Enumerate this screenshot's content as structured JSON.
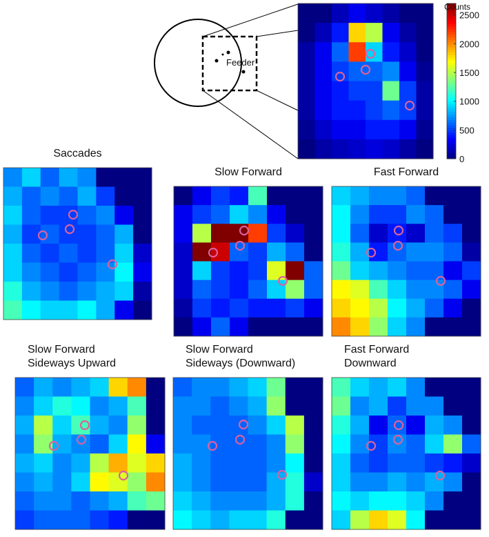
{
  "chart_data": [
    {
      "type": "heatmap",
      "colorbar_label": "Counts",
      "clim": [
        0,
        2700
      ],
      "cticks": [
        0,
        500,
        1000,
        1500,
        2000,
        2500
      ],
      "values": [
        [
          0,
          0,
          150,
          300,
          200,
          100,
          0,
          0
        ],
        [
          0,
          150,
          400,
          1800,
          1500,
          300,
          100,
          0
        ],
        [
          100,
          300,
          600,
          2200,
          900,
          400,
          200,
          0
        ],
        [
          100,
          300,
          500,
          600,
          600,
          700,
          300,
          50
        ],
        [
          100,
          300,
          400,
          500,
          500,
          1300,
          500,
          100
        ],
        [
          100,
          300,
          400,
          400,
          500,
          600,
          500,
          100
        ],
        [
          50,
          200,
          300,
          300,
          400,
          400,
          300,
          50
        ],
        [
          0,
          100,
          150,
          200,
          250,
          200,
          100,
          0
        ]
      ]
    },
    {
      "type": "heatmap",
      "title": [
        "Saccades"
      ],
      "clim": [
        0,
        2700
      ],
      "values": [
        [
          700,
          900,
          600,
          800,
          700,
          0,
          0,
          0
        ],
        [
          800,
          600,
          700,
          600,
          800,
          500,
          0,
          0
        ],
        [
          900,
          600,
          500,
          500,
          600,
          700,
          300,
          0
        ],
        [
          800,
          500,
          600,
          500,
          500,
          600,
          800,
          0
        ],
        [
          900,
          600,
          500,
          600,
          500,
          600,
          900,
          200
        ],
        [
          900,
          700,
          600,
          500,
          600,
          700,
          1000,
          300
        ],
        [
          1100,
          800,
          700,
          600,
          700,
          800,
          900,
          100
        ],
        [
          1200,
          1000,
          900,
          900,
          1000,
          800,
          300,
          0
        ]
      ]
    },
    {
      "type": "heatmap",
      "title": [
        "Slow Forward"
      ],
      "clim": [
        0,
        2700
      ],
      "values": [
        [
          0,
          300,
          500,
          400,
          1200,
          0,
          0,
          0
        ],
        [
          300,
          500,
          600,
          900,
          700,
          300,
          0,
          0
        ],
        [
          300,
          1500,
          2700,
          2700,
          2200,
          500,
          200,
          0
        ],
        [
          200,
          2700,
          2500,
          600,
          500,
          800,
          600,
          0
        ],
        [
          200,
          900,
          500,
          400,
          500,
          1600,
          2700,
          600
        ],
        [
          200,
          600,
          500,
          400,
          600,
          900,
          1400,
          600
        ],
        [
          100,
          500,
          400,
          500,
          400,
          400,
          500,
          300
        ],
        [
          0,
          300,
          600,
          300,
          0,
          0,
          0,
          0
        ]
      ]
    },
    {
      "type": "heatmap",
      "title": [
        "Fast Forward"
      ],
      "clim": [
        0,
        2700
      ],
      "values": [
        [
          900,
          800,
          700,
          700,
          600,
          0,
          0,
          0
        ],
        [
          1000,
          700,
          500,
          500,
          700,
          600,
          0,
          0
        ],
        [
          1000,
          600,
          200,
          400,
          200,
          600,
          500,
          0
        ],
        [
          1100,
          800,
          400,
          600,
          700,
          700,
          600,
          100
        ],
        [
          1300,
          900,
          800,
          700,
          600,
          600,
          300,
          500
        ],
        [
          1700,
          1600,
          1200,
          900,
          700,
          700,
          600,
          300
        ],
        [
          1800,
          1700,
          1500,
          1000,
          800,
          600,
          300,
          0
        ],
        [
          2000,
          1800,
          1400,
          900,
          700,
          0,
          0,
          0
        ]
      ]
    },
    {
      "type": "heatmap",
      "title": [
        "Slow Forward",
        "Sideways Upward"
      ],
      "clim": [
        0,
        2700
      ],
      "values": [
        [
          600,
          800,
          700,
          800,
          900,
          1800,
          2000,
          0
        ],
        [
          700,
          900,
          1100,
          1000,
          700,
          800,
          1200,
          0
        ],
        [
          800,
          1500,
          900,
          1200,
          800,
          700,
          1400,
          0
        ],
        [
          700,
          1400,
          800,
          700,
          600,
          900,
          1700,
          300
        ],
        [
          800,
          900,
          700,
          800,
          1500,
          1900,
          1600,
          1800
        ],
        [
          700,
          800,
          700,
          900,
          1700,
          1600,
          1400,
          2000
        ],
        [
          600,
          700,
          700,
          600,
          700,
          800,
          1200,
          1300
        ],
        [
          500,
          600,
          600,
          600,
          500,
          400,
          0,
          0
        ]
      ]
    },
    {
      "type": "heatmap",
      "title": [
        "Slow Forward",
        "Sideways (Downward)"
      ],
      "clim": [
        0,
        2700
      ],
      "values": [
        [
          600,
          700,
          700,
          800,
          900,
          1300,
          0,
          0
        ],
        [
          700,
          700,
          600,
          700,
          800,
          1400,
          0,
          0
        ],
        [
          700,
          600,
          600,
          600,
          700,
          900,
          1500,
          0
        ],
        [
          700,
          700,
          600,
          600,
          600,
          700,
          1400,
          0
        ],
        [
          800,
          700,
          600,
          600,
          600,
          700,
          1000,
          0
        ],
        [
          800,
          700,
          600,
          600,
          600,
          800,
          1100,
          200
        ],
        [
          900,
          800,
          700,
          700,
          700,
          800,
          1100,
          0
        ],
        [
          1000,
          900,
          800,
          900,
          900,
          1100,
          0,
          0
        ]
      ]
    },
    {
      "type": "heatmap",
      "title": [
        "Fast Forward",
        "Downward"
      ],
      "clim": [
        0,
        2700
      ],
      "values": [
        [
          1200,
          900,
          800,
          900,
          700,
          0,
          0,
          0
        ],
        [
          1300,
          700,
          800,
          500,
          700,
          700,
          0,
          0
        ],
        [
          1100,
          800,
          300,
          600,
          300,
          800,
          700,
          0
        ],
        [
          1000,
          700,
          500,
          700,
          600,
          900,
          1400,
          600
        ],
        [
          900,
          600,
          500,
          600,
          600,
          500,
          400,
          200
        ],
        [
          900,
          700,
          700,
          800,
          700,
          800,
          700,
          0
        ],
        [
          1000,
          900,
          1000,
          1000,
          900,
          700,
          0,
          0
        ],
        [
          900,
          1500,
          1800,
          1600,
          1000,
          0,
          0,
          0
        ]
      ]
    }
  ],
  "schematic": {
    "label": "Feeder"
  }
}
